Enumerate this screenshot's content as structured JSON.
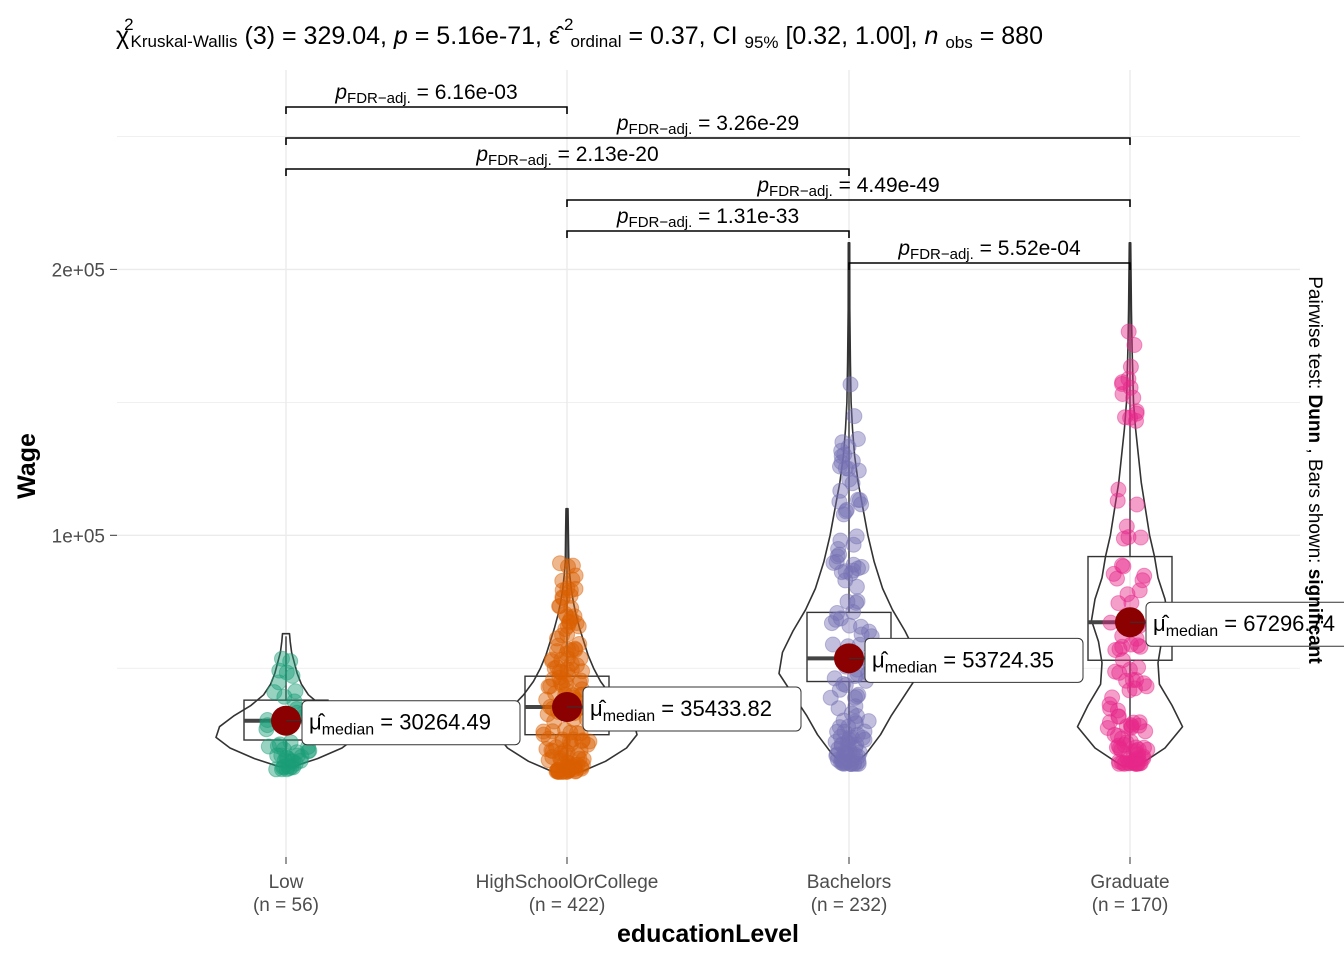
{
  "chart_data": {
    "type": "violin-box",
    "title_parts": {
      "chi": "χ",
      "sup2": "2",
      "test_sub": "Kruskal-Wallis",
      "df": "(3) = 329.04, ",
      "p_sym": "p",
      "p_val": " = 5.16e-71, ",
      "eps": "ε̂",
      "eps_sup": "2",
      "eps_sub": "ordinal",
      "eps_val": " = 0.37, CI",
      "ci_sub": "95%",
      "ci_val": " [0.32, 1.00], ",
      "n_sym": "n",
      "n_sub": "obs",
      "n_val": " = 880"
    },
    "xlabel": "educationLevel",
    "ylabel": "Wage",
    "caption_prefix": "Pairwise test: ",
    "caption_test": "Dunn",
    "caption_mid": ", Bars shown: ",
    "caption_bars": "significant",
    "ylim": [
      -21000,
      275000
    ],
    "yticks": [
      100000,
      200000
    ],
    "ytick_labels": [
      "1e+05",
      "2e+05"
    ],
    "grid": true,
    "categories": [
      {
        "name": "Low",
        "n_label": "(n = 56)",
        "color": "#1B9E77",
        "median": 30264.49,
        "median_label": "30264.49",
        "q1": 23000,
        "q3": 38000,
        "wmin": 12000,
        "wmax": 62000,
        "vmin": 13000,
        "vmax": 63000,
        "violin": [
          [
            13000,
            0.1
          ],
          [
            16000,
            0.45
          ],
          [
            20000,
            0.8
          ],
          [
            24000,
            1.0
          ],
          [
            28000,
            0.95
          ],
          [
            32000,
            0.75
          ],
          [
            36000,
            0.5
          ],
          [
            40000,
            0.32
          ],
          [
            44000,
            0.22
          ],
          [
            48000,
            0.16
          ],
          [
            52000,
            0.12
          ],
          [
            56000,
            0.08
          ],
          [
            60000,
            0.06
          ],
          [
            63000,
            0.05
          ]
        ],
        "pts_min": 12000,
        "pts_max": 63000,
        "pts_count": 50
      },
      {
        "name": "HighSchoolOrCollege",
        "n_label": "(n = 422)",
        "color": "#D95F02",
        "median": 35433.82,
        "median_label": "35433.82",
        "q1": 25000,
        "q3": 47000,
        "wmin": 11000,
        "wmax": 110000,
        "vmin": 11000,
        "vmax": 110000,
        "violin": [
          [
            11000,
            0.2
          ],
          [
            15000,
            0.55
          ],
          [
            20000,
            0.85
          ],
          [
            25000,
            1.0
          ],
          [
            30000,
            0.95
          ],
          [
            35000,
            0.8
          ],
          [
            40000,
            0.62
          ],
          [
            45000,
            0.48
          ],
          [
            50000,
            0.38
          ],
          [
            55000,
            0.3
          ],
          [
            60000,
            0.24
          ],
          [
            65000,
            0.18
          ],
          [
            70000,
            0.13
          ],
          [
            75000,
            0.09
          ],
          [
            80000,
            0.06
          ],
          [
            85000,
            0.04
          ],
          [
            90000,
            0.025
          ],
          [
            100000,
            0.02
          ],
          [
            110000,
            0.015
          ]
        ],
        "pts_min": 11000,
        "pts_max": 96000,
        "pts_count": 150
      },
      {
        "name": "Bachelors",
        "n_label": "(n = 232)",
        "color": "#7570B3",
        "median": 53724.35,
        "median_label": "53724.35",
        "q1": 45000,
        "q3": 71000,
        "wmin": 13000,
        "wmax": 210000,
        "vmin": 13000,
        "vmax": 210000,
        "violin": [
          [
            13000,
            0.05
          ],
          [
            18000,
            0.25
          ],
          [
            25000,
            0.45
          ],
          [
            32000,
            0.6
          ],
          [
            40000,
            0.8
          ],
          [
            48000,
            1.0
          ],
          [
            56000,
            0.95
          ],
          [
            64000,
            0.8
          ],
          [
            72000,
            0.62
          ],
          [
            80000,
            0.48
          ],
          [
            90000,
            0.36
          ],
          [
            100000,
            0.27
          ],
          [
            110000,
            0.2
          ],
          [
            120000,
            0.13
          ],
          [
            130000,
            0.08
          ],
          [
            140000,
            0.05
          ],
          [
            150000,
            0.03
          ],
          [
            165000,
            0.02
          ],
          [
            185000,
            0.012
          ],
          [
            210000,
            0.01
          ]
        ],
        "pts_min": 14000,
        "pts_max": 165000,
        "pts_count": 130
      },
      {
        "name": "Graduate",
        "n_label": "(n = 170)",
        "color": "#E7298A",
        "median": 67296.74,
        "median_label": "67296.74",
        "q1": 53000,
        "q3": 92000,
        "wmin": 13000,
        "wmax": 210000,
        "vmin": 13000,
        "vmax": 210000,
        "violin": [
          [
            13000,
            0.1
          ],
          [
            20000,
            0.5
          ],
          [
            28000,
            0.75
          ],
          [
            36000,
            0.6
          ],
          [
            44000,
            0.42
          ],
          [
            52000,
            0.4
          ],
          [
            60000,
            0.45
          ],
          [
            68000,
            0.55
          ],
          [
            76000,
            0.5
          ],
          [
            84000,
            0.4
          ],
          [
            92000,
            0.35
          ],
          [
            100000,
            0.28
          ],
          [
            110000,
            0.22
          ],
          [
            120000,
            0.16
          ],
          [
            130000,
            0.12
          ],
          [
            140000,
            0.08
          ],
          [
            150000,
            0.05
          ],
          [
            160000,
            0.04
          ],
          [
            170000,
            0.03
          ],
          [
            185000,
            0.02
          ],
          [
            210000,
            0.01
          ]
        ],
        "pts_min": 14000,
        "pts_max": 180000,
        "pts_count": 110
      }
    ],
    "pairwise": [
      {
        "from": 0,
        "to": 1,
        "label": "= 6.16e-03"
      },
      {
        "from": 0,
        "to": 3,
        "label": "= 3.26e-29"
      },
      {
        "from": 0,
        "to": 2,
        "label": "= 2.13e-20"
      },
      {
        "from": 1,
        "to": 3,
        "label": "= 4.49e-49"
      },
      {
        "from": 1,
        "to": 2,
        "label": "= 1.31e-33"
      },
      {
        "from": 2,
        "to": 3,
        "label": "= 5.52e-04"
      }
    ],
    "p_symbol": "p",
    "p_sub": "FDR−adj.",
    "mu_symbol": "μ̂",
    "mu_sub": "median",
    "mu_eq": " = ",
    "median_point_color": "#8B0000"
  }
}
